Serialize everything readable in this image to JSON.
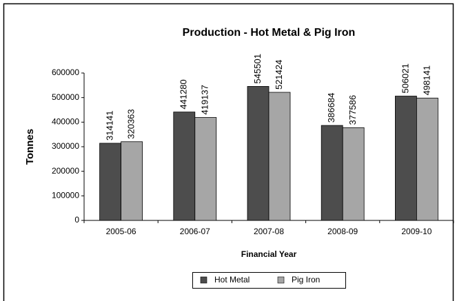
{
  "chart_data": {
    "type": "bar",
    "title": "Production - Hot Metal & Pig Iron",
    "x_label": "Financial Year",
    "y_label": "Tonnes",
    "categories": [
      "2005-06",
      "2006-07",
      "2007-08",
      "2008-09",
      "2009-10"
    ],
    "series": [
      {
        "name": "Hot Metal",
        "color": "#4d4d4d",
        "values": [
          314141,
          441280,
          545501,
          386684,
          506021
        ]
      },
      {
        "name": "Pig Iron",
        "color": "#a6a6a6",
        "values": [
          320363,
          419137,
          521424,
          377586,
          498141
        ]
      }
    ],
    "ylim": [
      0,
      600000
    ],
    "yticks": [
      0,
      100000,
      200000,
      300000,
      400000,
      500000,
      600000
    ],
    "grid": false,
    "legend": "bottom"
  }
}
